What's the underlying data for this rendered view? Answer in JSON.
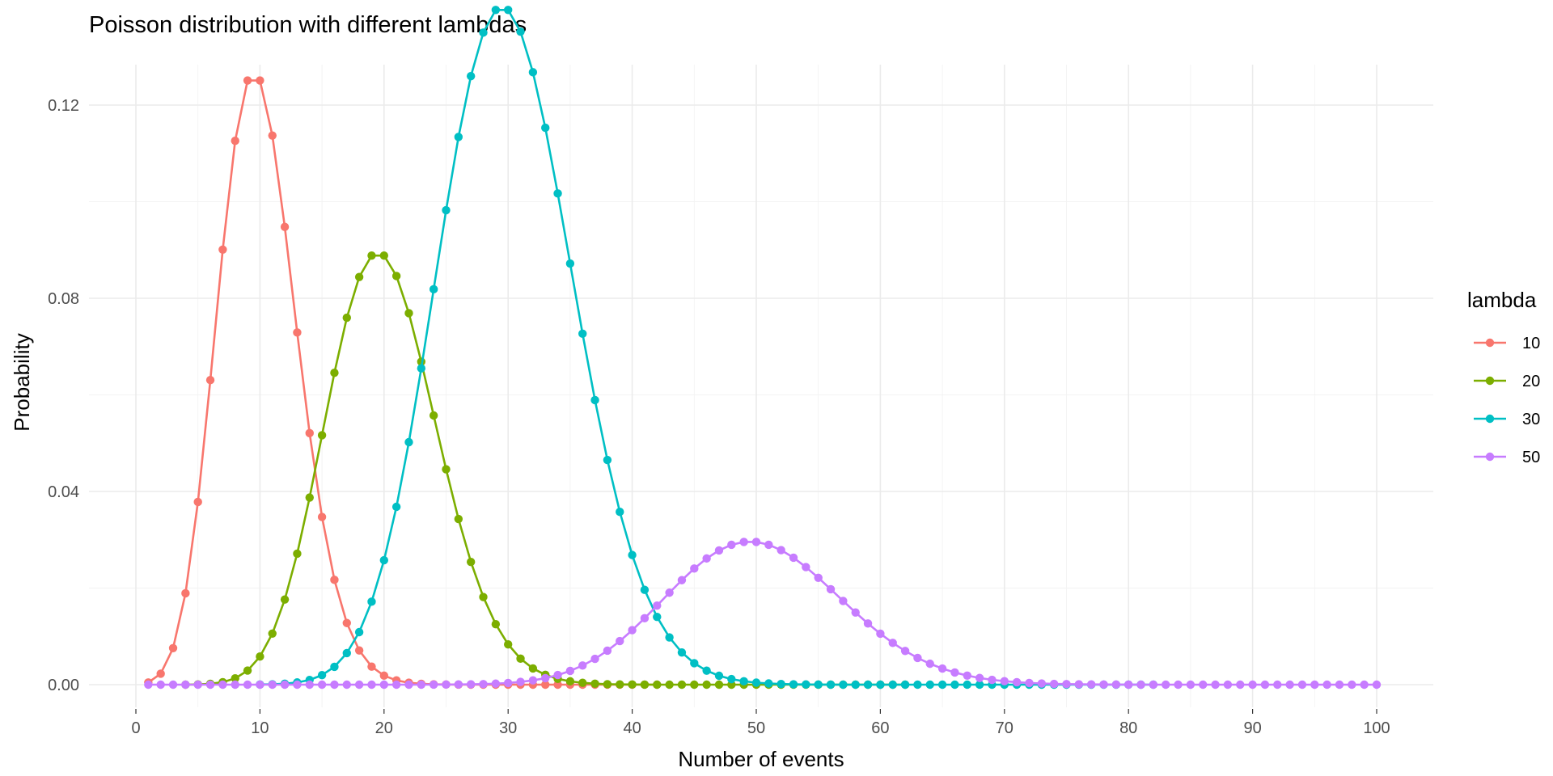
{
  "chart_data": {
    "type": "line",
    "title": "Poisson distribution with different lambdas",
    "xlabel": "Number of events",
    "ylabel": "Probability",
    "xlim": [
      1,
      100
    ],
    "ylim": [
      0,
      0.1251
    ],
    "x_ticks": [
      0,
      10,
      20,
      30,
      40,
      50,
      60,
      70,
      80,
      90,
      100
    ],
    "x_tick_labels": [
      "0",
      "10",
      "20",
      "30",
      "40",
      "50",
      "60",
      "70",
      "80",
      "90",
      "100"
    ],
    "y_ticks": [
      0,
      0.04,
      0.08,
      0.12
    ],
    "y_tick_labels": [
      "0.00",
      "0.04",
      "0.08",
      "0.12"
    ],
    "grid": true,
    "legend": {
      "title": "lambda",
      "position": "right"
    },
    "series": [
      {
        "name": "10",
        "color": "#F8766D",
        "lambda": 10,
        "x": [
          1,
          2,
          3,
          4,
          5,
          6,
          7,
          8,
          9,
          10,
          11,
          12,
          13,
          14,
          15,
          16,
          17,
          18,
          19,
          20,
          21,
          22,
          23,
          24,
          25,
          26,
          27,
          28,
          29,
          30,
          31,
          32,
          33,
          34,
          35,
          36,
          37,
          38,
          39,
          40,
          41,
          42
        ],
        "values": [
          0.000454,
          0.00227,
          0.00757,
          0.01892,
          0.03783,
          0.06306,
          0.09008,
          0.1126,
          0.1251,
          0.1251,
          0.1137,
          0.09478,
          0.07291,
          0.05208,
          0.03472,
          0.0217,
          0.01276,
          0.00709,
          0.00373,
          0.00187,
          0.00089,
          0.0004,
          0.00018,
          7e-05,
          3e-05,
          1e-05,
          0,
          0,
          0,
          0,
          0,
          0,
          0,
          0,
          0,
          0,
          0,
          0,
          0,
          0,
          0,
          0
        ]
      },
      {
        "name": "20",
        "color": "#7CAE00",
        "lambda": 20,
        "x": [
          4,
          5,
          6,
          7,
          8,
          9,
          10,
          11,
          12,
          13,
          14,
          15,
          16,
          17,
          18,
          19,
          20,
          21,
          22,
          23,
          24,
          25,
          26,
          27,
          28,
          29,
          30,
          31,
          32,
          33,
          34,
          35,
          36,
          37,
          38,
          39,
          40,
          41,
          42,
          43,
          44,
          45,
          46,
          47,
          48,
          49,
          50,
          51,
          52,
          53,
          54,
          55,
          56,
          57,
          58,
          59,
          60,
          61,
          62
        ],
        "values": [
          0,
          5e-05,
          0.00018,
          0.00052,
          0.0013,
          0.00291,
          0.00582,
          0.01058,
          0.01763,
          0.02712,
          0.03874,
          0.05165,
          0.06457,
          0.07597,
          0.08441,
          0.08884,
          0.08884,
          0.08461,
          0.07691,
          0.06688,
          0.05573,
          0.04459,
          0.0343,
          0.02541,
          0.01815,
          0.01252,
          0.00834,
          0.00538,
          0.00336,
          0.00204,
          0.0012,
          0.00069,
          0.00038,
          0.0002,
          0.0001,
          5e-05,
          3e-05,
          1e-05,
          0,
          0,
          0,
          0,
          0,
          0,
          0,
          0,
          0,
          0,
          0,
          0,
          0,
          0,
          0,
          0,
          0,
          0,
          0,
          0,
          0
        ]
      },
      {
        "name": "30",
        "color": "#00BFC4",
        "lambda": 30,
        "x": [
          10,
          11,
          12,
          13,
          14,
          15,
          16,
          17,
          18,
          19,
          20,
          21,
          22,
          23,
          24,
          25,
          26,
          27,
          28,
          29,
          30,
          31,
          32,
          33,
          34,
          35,
          36,
          37,
          38,
          39,
          40,
          41,
          42,
          43,
          44,
          45,
          46,
          47,
          48,
          49,
          50,
          51,
          52,
          53,
          54,
          55,
          56,
          57,
          58,
          59,
          60,
          61,
          62,
          63,
          64,
          65,
          66,
          67,
          68,
          69,
          70,
          71,
          72,
          73,
          74,
          75,
          76,
          77,
          78,
          79,
          80,
          81,
          82
        ],
        "values": [
          3e-05,
          8e-05,
          0.0002,
          0.00046,
          0.00098,
          0.00197,
          0.0037,
          0.00653,
          0.01088,
          0.01718,
          0.02577,
          0.03682,
          0.05021,
          0.06549,
          0.08187,
          0.09824,
          0.1134,
          0.126,
          0.135,
          0.1397,
          0.1397,
          0.1352,
          0.1268,
          0.1153,
          0.1017,
          0.08719,
          0.07266,
          0.05892,
          0.04652,
          0.03579,
          0.02684,
          0.01963,
          0.01402,
          0.00978,
          0.00667,
          0.00444,
          0.00289,
          0.00184,
          0.00115,
          0.0007,
          0.00042,
          0.00025,
          0.00014,
          8e-05,
          4e-05,
          2e-05,
          1e-05,
          0,
          0,
          0,
          0,
          0,
          0,
          0,
          0,
          0,
          0,
          0,
          0,
          0,
          0,
          0,
          0,
          0,
          0,
          0,
          0,
          0,
          0,
          0,
          0,
          0,
          0
        ]
      },
      {
        "name": "50",
        "color": "#C77CFF",
        "lambda": 50,
        "x": [
          1,
          2,
          3,
          4,
          5,
          6,
          7,
          8,
          9,
          10,
          11,
          12,
          13,
          14,
          15,
          16,
          17,
          18,
          19,
          20,
          21,
          22,
          23,
          24,
          25,
          26,
          27,
          28,
          29,
          30,
          31,
          32,
          33,
          34,
          35,
          36,
          37,
          38,
          39,
          40,
          41,
          42,
          43,
          44,
          45,
          46,
          47,
          48,
          49,
          50,
          51,
          52,
          53,
          54,
          55,
          56,
          57,
          58,
          59,
          60,
          61,
          62,
          63,
          64,
          65,
          66,
          67,
          68,
          69,
          70,
          71,
          72,
          73,
          74,
          75,
          76,
          77,
          78,
          79,
          80,
          81,
          82,
          83,
          84,
          85,
          86,
          87,
          88,
          89,
          90,
          91,
          92,
          93,
          94,
          95,
          96,
          97,
          98,
          99,
          100
        ],
        "values": [
          0,
          0,
          0,
          0,
          0,
          0,
          0,
          0,
          0,
          0,
          0,
          0,
          0,
          0,
          0,
          0,
          0,
          0,
          0,
          0,
          0,
          0,
          0,
          1e-05,
          2e-05,
          4e-05,
          7e-05,
          0.00012,
          0.00021,
          0.00035,
          0.00057,
          0.00089,
          0.00135,
          0.00199,
          0.00285,
          0.00396,
          0.00535,
          0.00704,
          0.00902,
          0.01128,
          0.01375,
          0.01637,
          0.01904,
          0.02163,
          0.02404,
          0.02613,
          0.0278,
          0.02896,
          0.02955,
          0.02955,
          0.02897,
          0.02786,
          0.02629,
          0.02434,
          0.02213,
          0.01976,
          0.01733,
          0.01494,
          0.01266,
          0.01055,
          0.00865,
          0.00698,
          0.00554,
          0.00433,
          0.00333,
          0.00252,
          0.00188,
          0.00138,
          0.001,
          0.00072,
          0.00051,
          0.00035,
          0.00024,
          0.00016,
          0.00011,
          7e-05,
          5e-05,
          3e-05,
          2e-05,
          1e-05,
          0,
          0,
          0,
          0,
          0,
          0,
          0,
          0,
          0,
          0,
          0,
          0,
          0,
          0,
          0,
          0,
          0,
          0,
          0,
          0
        ]
      }
    ]
  }
}
